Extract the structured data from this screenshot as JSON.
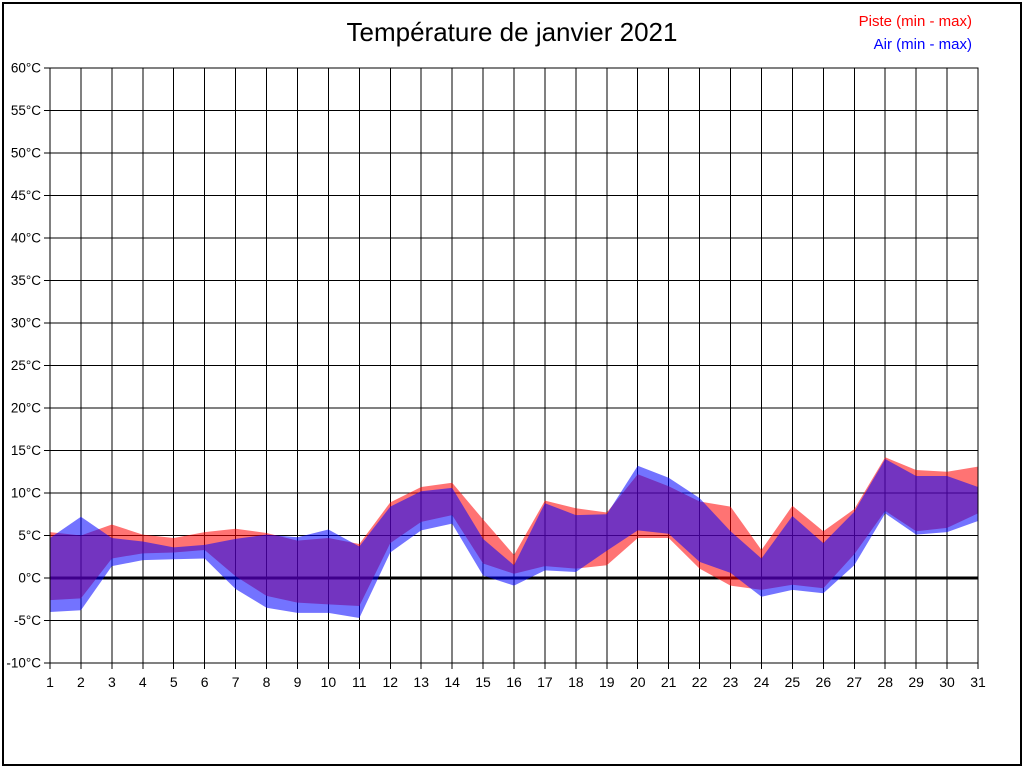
{
  "title": "Température de janvier 2021",
  "legend": [
    {
      "label": "Piste (min - max)",
      "color": "#ff0000"
    },
    {
      "label": "Air (min - max)",
      "color": "#0000ff"
    }
  ],
  "chart_data": {
    "type": "area",
    "title": "Température de janvier 2021",
    "xlabel": "",
    "ylabel": "°C",
    "x": [
      1,
      2,
      3,
      4,
      5,
      6,
      7,
      8,
      9,
      10,
      11,
      12,
      13,
      14,
      15,
      16,
      17,
      18,
      19,
      20,
      21,
      22,
      23,
      24,
      25,
      26,
      27,
      28,
      29,
      30,
      31
    ],
    "xtick_labels": [
      "1",
      "2",
      "3",
      "4",
      "5",
      "6",
      "7",
      "8",
      "9",
      "10",
      "11",
      "12",
      "13",
      "14",
      "15",
      "16",
      "17",
      "18",
      "19",
      "20",
      "21",
      "22",
      "23",
      "24",
      "25",
      "26",
      "27",
      "28",
      "29",
      "30",
      "31"
    ],
    "ylim": [
      -10,
      60
    ],
    "ytick_step": 5,
    "yticks": [
      60,
      55,
      50,
      45,
      40,
      35,
      30,
      25,
      20,
      15,
      10,
      5,
      0,
      -5,
      -10
    ],
    "ytick_labels": [
      "60°C",
      "55°C",
      "50°C",
      "45°C",
      "40°C",
      "35°C",
      "30°C",
      "25°C",
      "20°C",
      "15°C",
      "10°C",
      "5°C",
      "0°C",
      "-5°C",
      "-10°C"
    ],
    "grid": true,
    "zero_line": true,
    "legend_position": "top-right",
    "background": "#ffffff",
    "grid_color": "#000000",
    "series": [
      {
        "name": "Piste (min - max)",
        "color": "#ff0000",
        "fill_opacity": 0.55,
        "min": [
          -2.6,
          -2.4,
          2.3,
          2.9,
          3.0,
          3.3,
          0.2,
          -2.1,
          -2.9,
          -3.1,
          -3.3,
          4.1,
          6.6,
          7.4,
          1.7,
          0.5,
          1.4,
          1.1,
          1.5,
          4.7,
          4.7,
          1.1,
          -0.9,
          -1.4,
          -0.8,
          -1.2,
          2.8,
          7.9,
          5.5,
          5.9,
          7.6
        ],
        "max": [
          5.4,
          5.0,
          6.3,
          5.1,
          4.7,
          5.4,
          5.8,
          5.3,
          4.4,
          4.7,
          4.0,
          8.9,
          10.7,
          11.2,
          6.9,
          2.7,
          9.1,
          8.2,
          7.7,
          12.2,
          10.8,
          9.0,
          8.4,
          3.3,
          8.5,
          5.5,
          8.1,
          14.2,
          12.7,
          12.5,
          13.1
        ]
      },
      {
        "name": "Air (min - max)",
        "color": "#0000ff",
        "fill_opacity": 0.55,
        "min": [
          -4.0,
          -3.8,
          1.4,
          2.1,
          2.2,
          2.3,
          -1.3,
          -3.5,
          -4.1,
          -4.1,
          -4.7,
          3.0,
          5.6,
          6.4,
          0.3,
          -0.9,
          0.9,
          0.7,
          3.2,
          5.6,
          5.2,
          1.9,
          0.6,
          -2.2,
          -1.4,
          -1.8,
          1.5,
          7.6,
          5.1,
          5.4,
          6.7
        ],
        "max": [
          4.7,
          7.2,
          4.7,
          4.3,
          3.6,
          3.9,
          4.6,
          5.1,
          4.8,
          5.7,
          3.7,
          8.4,
          10.2,
          10.6,
          4.6,
          1.5,
          8.8,
          7.4,
          7.5,
          13.2,
          11.8,
          9.4,
          5.5,
          2.3,
          7.3,
          4.1,
          7.8,
          14.0,
          12.0,
          12.0,
          10.7
        ]
      }
    ]
  }
}
